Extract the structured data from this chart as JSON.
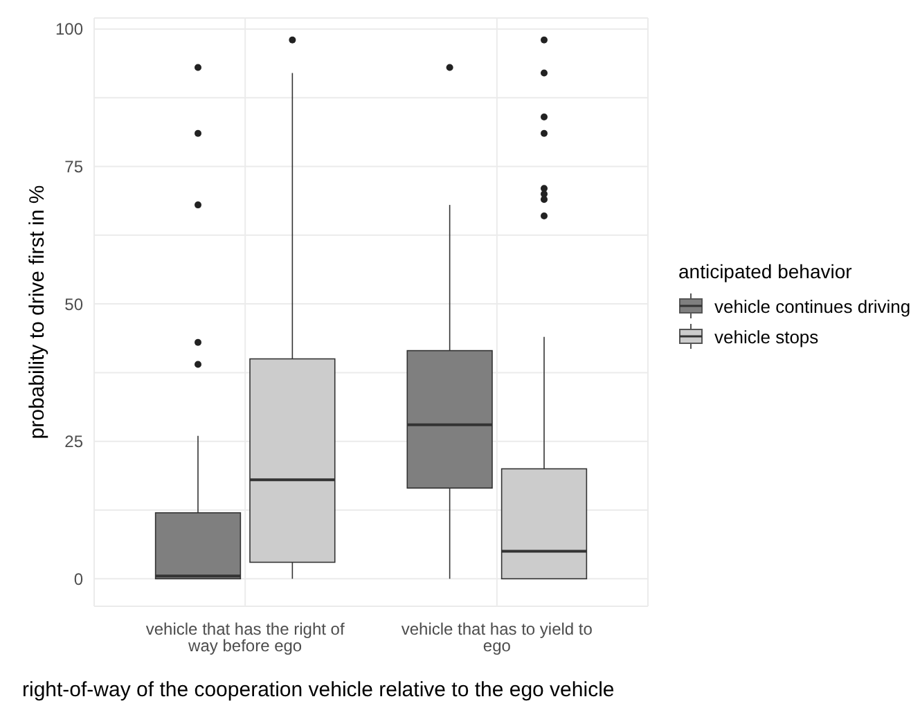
{
  "chart_data": {
    "type": "box",
    "xlabel": "right-of-way of the cooperation vehicle relative to the ego vehicle",
    "ylabel": "probability to drive first in %",
    "legend_title": "anticipated behavior",
    "categories": [
      "vehicle that has the right of way before ego",
      "vehicle that has to yield to ego"
    ],
    "series": [
      {
        "name": "vehicle continues driving",
        "color": "#7f7f7f",
        "boxes": [
          {
            "low": 0,
            "q1": 0,
            "median": 0.5,
            "q3": 12,
            "high": 26,
            "outliers": [
              93,
              81,
              68,
              43,
              39
            ]
          },
          {
            "low": 0,
            "q1": 16.5,
            "median": 28,
            "q3": 41.5,
            "high": 68,
            "outliers": [
              93
            ]
          }
        ]
      },
      {
        "name": "vehicle stops",
        "color": "#cccccc",
        "boxes": [
          {
            "low": 0,
            "q1": 3,
            "median": 18,
            "q3": 40,
            "high": 92,
            "outliers": [
              98
            ]
          },
          {
            "low": 0,
            "q1": 0,
            "median": 5,
            "q3": 20,
            "high": 44,
            "outliers": [
              98,
              92,
              84,
              81,
              71,
              70,
              69,
              66
            ]
          }
        ]
      }
    ],
    "ylim": [
      -5,
      102
    ],
    "yticks": [
      0,
      {
        "value": 12.5,
        "label": null
      },
      25,
      {
        "value": 37.5,
        "label": null
      },
      50,
      {
        "value": 62.5,
        "label": null
      },
      75,
      {
        "value": 87.5,
        "label": null
      },
      100
    ],
    "grid": true,
    "legend": "right"
  }
}
